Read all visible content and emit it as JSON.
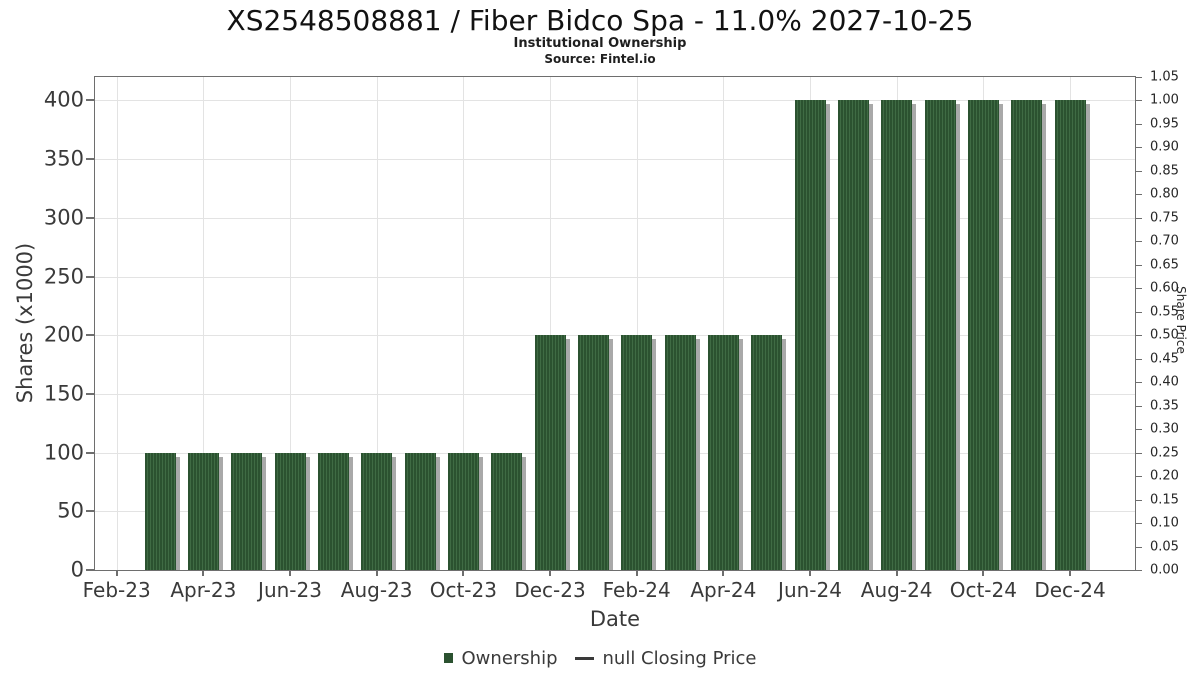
{
  "chart_data": {
    "type": "bar",
    "title": "XS2548508881 / Fiber Bidco Spa - 11.0% 2027-10-25",
    "subtitle": "Institutional Ownership",
    "source": "Source: Fintel.io",
    "x_axis": {
      "label": "Date",
      "tick_labels": [
        "Feb-23",
        "Apr-23",
        "Jun-23",
        "Aug-23",
        "Oct-23",
        "Dec-23",
        "Feb-24",
        "Apr-24",
        "Jun-24",
        "Aug-24",
        "Oct-24",
        "Dec-24"
      ],
      "grid": true
    },
    "y_left": {
      "label": "Shares (x1000)",
      "ticks": [
        0,
        50,
        100,
        150,
        200,
        250,
        300,
        350,
        400
      ],
      "max": 420,
      "grid": true
    },
    "y_right": {
      "label": "Share Price",
      "ticks": [
        "0.00",
        "0.05",
        "0.10",
        "0.15",
        "0.20",
        "0.25",
        "0.30",
        "0.35",
        "0.40",
        "0.45",
        "0.50",
        "0.55",
        "0.60",
        "0.65",
        "0.70",
        "0.75",
        "0.80",
        "0.85",
        "0.90",
        "0.95",
        "1.00",
        "1.05"
      ],
      "min": 0.0,
      "max": 1.05
    },
    "bars": [
      {
        "month": "Mar-23",
        "value": 100
      },
      {
        "month": "Apr-23",
        "value": 100
      },
      {
        "month": "May-23",
        "value": 100
      },
      {
        "month": "Jun-23",
        "value": 100
      },
      {
        "month": "Jul-23",
        "value": 100
      },
      {
        "month": "Aug-23",
        "value": 100
      },
      {
        "month": "Sep-23",
        "value": 100
      },
      {
        "month": "Oct-23",
        "value": 100
      },
      {
        "month": "Nov-23",
        "value": 100
      },
      {
        "month": "Dec-23",
        "value": 200
      },
      {
        "month": "Jan-24",
        "value": 200
      },
      {
        "month": "Feb-24",
        "value": 200
      },
      {
        "month": "Mar-24",
        "value": 200
      },
      {
        "month": "Apr-24",
        "value": 200
      },
      {
        "month": "May-24",
        "value": 200
      },
      {
        "month": "Jun-24",
        "value": 400
      },
      {
        "month": "Jul-24",
        "value": 400
      },
      {
        "month": "Aug-24",
        "value": 400
      },
      {
        "month": "Sep-24",
        "value": 400
      },
      {
        "month": "Oct-24",
        "value": 400
      },
      {
        "month": "Nov-24",
        "value": 400
      },
      {
        "month": "Dec-24",
        "value": 400
      }
    ],
    "legend": [
      {
        "label": "Ownership",
        "swatch": "bar-square"
      },
      {
        "label": "null Closing Price",
        "swatch": "line-dash"
      }
    ],
    "legend_position": "bottom-center",
    "colors": {
      "bar_fill": "#2b5230",
      "bar_hatch_line": "#3f6b44",
      "bar_shadow": "#a9a9a9",
      "grid": "#e3e3e3",
      "axis_border": "#6e6e6e",
      "tick_mark": "#6e6e6e",
      "tick_text": "#3a3a3a",
      "legend_dash": "#3a3a3a"
    }
  }
}
